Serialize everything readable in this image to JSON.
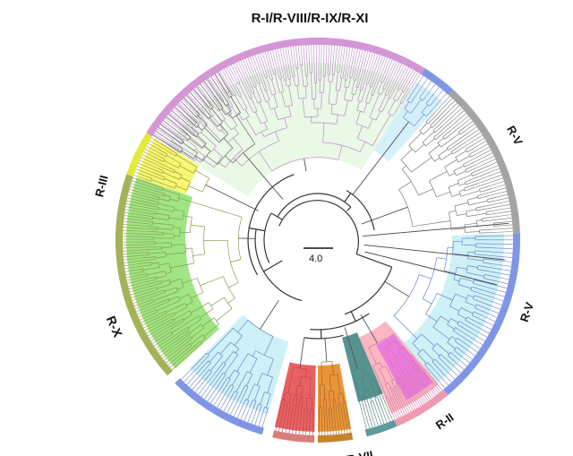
{
  "figure": {
    "clades": [
      {
        "id": "r-i-viii-ix-xi",
        "label": "R-I/R-VIII/R-IX/R-XI",
        "ring_color": "#d596d6",
        "fill_color": "#e6f7e2",
        "start_deg": 302,
        "end_deg": 392,
        "leaves": 118
      },
      {
        "id": "r-v-top",
        "label": "R-V",
        "ring_color": "#7f96e6",
        "fill_color": "#cdeefa",
        "start_deg": 392,
        "end_deg": 402,
        "leaves": 7
      },
      {
        "id": "gray-right",
        "label": "",
        "ring_color": "#a4a4a4",
        "fill_color": "",
        "start_deg": 402,
        "end_deg": 448,
        "leaves": 46
      },
      {
        "id": "r-v-bottom",
        "label": "R-V",
        "ring_color": "#7f96e6",
        "fill_color": "#c5eff5",
        "start_deg": 448,
        "end_deg": 500,
        "leaves": 40
      },
      {
        "id": "r-ii",
        "label": "R-II",
        "ring_color": "#ef9ab0",
        "fill_color": "#f9aab6",
        "inner_color": "#ea74e3",
        "start_deg": 500,
        "end_deg": 517,
        "leaves": 26
      },
      {
        "id": "r-vii",
        "label": "R-VII",
        "ring_color": "#5b9b9b",
        "fill_color": "#4d8c8a",
        "start_deg": 517,
        "end_deg": 526,
        "leaves": 10
      },
      {
        "id": "orange-clade",
        "label": "",
        "ring_color": "#c6832a",
        "fill_color": "#e98e2e",
        "start_deg": 530,
        "end_deg": 540,
        "leaves": 12
      },
      {
        "id": "red-clade",
        "label": "",
        "ring_color": "#d97c7c",
        "fill_color": "#e8575b",
        "start_deg": 541,
        "end_deg": 553,
        "leaves": 12
      },
      {
        "id": "cyan-bottom",
        "label": "",
        "ring_color": "#7f96e6",
        "fill_color": "#c5eef6",
        "start_deg": 556,
        "end_deg": 585,
        "leaves": 26
      },
      {
        "id": "r-x",
        "label": "R-X",
        "ring_color": "#a6b25a",
        "fill_color": "#8ee06e",
        "start_deg": 588,
        "end_deg": 649,
        "leaves": 70
      },
      {
        "id": "r-iii",
        "label": "R-III",
        "ring_color": "#e6e83d",
        "fill_color": "#f6f65a",
        "start_deg": 649,
        "end_deg": 662,
        "leaves": 14
      },
      {
        "id": "gray-left",
        "label": "",
        "ring_color": "#a4a4a4",
        "fill_color": "",
        "start_deg": 662,
        "end_deg": 662,
        "leaves": 18
      }
    ],
    "labels": [
      {
        "id": "r-i-viii-ix-xi",
        "text": "R-I/R-VIII/R-IX/R-XI",
        "angle": 0,
        "rotate": 0,
        "size": 15
      },
      {
        "id": "r-v-top",
        "text": "R-V",
        "angle": 62,
        "rotate": 62,
        "size": 13
      },
      {
        "id": "r-v-bottom",
        "text": "R-V",
        "angle": 109,
        "rotate": -71,
        "size": 13
      },
      {
        "id": "r-ii",
        "text": "R-II",
        "angle": 145,
        "rotate": -35,
        "size": 13
      },
      {
        "id": "r-vii",
        "text": "R-VII",
        "angle": 169,
        "rotate": -11,
        "size": 13
      },
      {
        "id": "r-x",
        "text": "R-X",
        "angle": 247,
        "rotate": 67,
        "size": 14
      },
      {
        "id": "r-iii",
        "text": "R-III",
        "angle": 284,
        "rotate": -76,
        "size": 13
      }
    ],
    "scale_bar": {
      "label": "4.0"
    }
  }
}
